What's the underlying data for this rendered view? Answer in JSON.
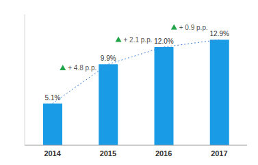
{
  "chart_data": {
    "type": "bar",
    "categories": [
      "2014",
      "2015",
      "2016",
      "2017"
    ],
    "values": [
      5.1,
      9.9,
      12.0,
      12.9
    ],
    "value_labels": [
      "5.1%",
      "9.9%",
      "12.0%",
      "12.9%"
    ],
    "data_labels": true,
    "color": "#1a9be6",
    "ylim": [
      0,
      16
    ],
    "tick_labels": "x",
    "line_style": "dotted",
    "annotations": [
      "+ 4.8 p.p.",
      "+ 2.1 p.p.",
      "+ 0.9 p.p."
    ]
  }
}
